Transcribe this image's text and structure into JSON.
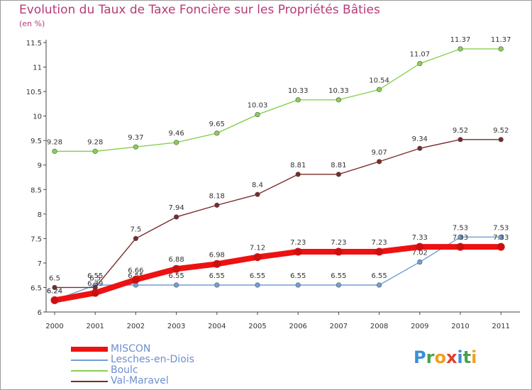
{
  "title": "Evolution du Taux de Taxe Foncière sur les Propriétés Bâties",
  "unit_label": "(en %)",
  "logo": {
    "letters": [
      "P",
      "r",
      "o",
      "x",
      "i",
      "t",
      "i"
    ],
    "colors": [
      "#3c8fd6",
      "#4aa34a",
      "#f0a020",
      "#e0402a",
      "#3c8fd6",
      "#4aa34a",
      "#f0a020"
    ]
  },
  "chart_data": {
    "type": "line",
    "title": "Evolution du Taux de Taxe Foncière sur les Propriétés Bâties",
    "ylabel": "(en %)",
    "xlabel": "",
    "x": [
      "2000",
      "2001",
      "2002",
      "2003",
      "2004",
      "2005",
      "2006",
      "2007",
      "2008",
      "2009",
      "2010",
      "2011"
    ],
    "ylim": [
      6,
      11.5
    ],
    "yticks": [
      "6",
      "6.5",
      "7",
      "7.5",
      "8",
      "8.5",
      "9",
      "9.5",
      "10",
      "10.5",
      "11",
      "11.5"
    ],
    "grid": false,
    "legend_position": "bottom-left",
    "series": [
      {
        "name": "MISCON",
        "color": "#ee1111",
        "values": [
          6.24,
          6.39,
          6.66,
          6.88,
          6.98,
          7.12,
          7.23,
          7.23,
          7.23,
          7.33,
          7.33,
          7.33
        ],
        "labels": [
          "6.24",
          "6.39",
          "6.66",
          "6.88",
          "6.98",
          "7.12",
          "7.23",
          "7.23",
          "7.23",
          "7.33",
          "7.33",
          "7.33"
        ]
      },
      {
        "name": "Lesches-en-Diois",
        "color": "#6f9fd6",
        "values": [
          6.24,
          6.55,
          6.55,
          6.55,
          6.55,
          6.55,
          6.55,
          6.55,
          6.55,
          7.02,
          7.53,
          7.53
        ],
        "labels": [
          "6.24",
          "6.55",
          "6.55",
          "6.55",
          "6.55",
          "6.55",
          "6.55",
          "6.55",
          "6.55",
          "7.02",
          "7.53",
          "7.53"
        ]
      },
      {
        "name": "Boulc",
        "color": "#88d050",
        "values": [
          9.28,
          9.28,
          9.37,
          9.46,
          9.65,
          10.03,
          10.33,
          10.33,
          10.54,
          11.07,
          11.37,
          11.37
        ],
        "labels": [
          "9.28",
          "9.28",
          "9.37",
          "9.46",
          "9.65",
          "10.03",
          "10.33",
          "10.33",
          "10.54",
          "11.07",
          "11.37",
          "11.37"
        ]
      },
      {
        "name": "Val-Maravel",
        "color": "#7a2a2a",
        "values": [
          6.5,
          6.5,
          7.5,
          7.94,
          8.18,
          8.4,
          8.81,
          8.81,
          9.07,
          9.34,
          9.52,
          9.52
        ],
        "labels": [
          "6.5",
          "6.5",
          "7.5",
          "7.94",
          "8.18",
          "8.4",
          "8.81",
          "8.81",
          "9.07",
          "9.34",
          "9.52",
          "9.52"
        ]
      }
    ]
  }
}
